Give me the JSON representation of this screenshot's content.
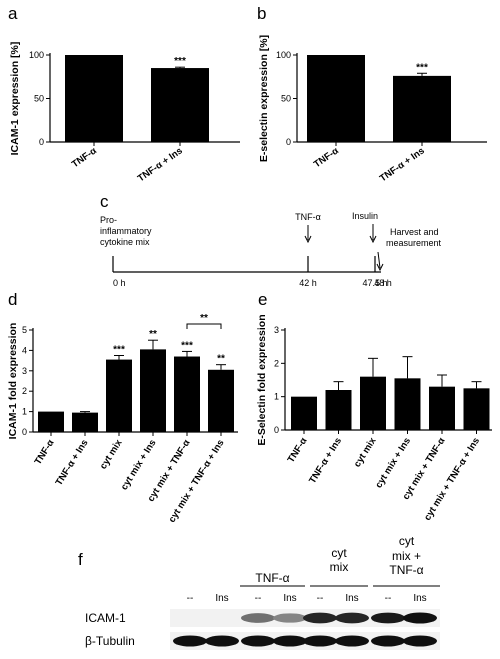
{
  "panels": {
    "a": "a",
    "b": "b",
    "c": "c",
    "d": "d",
    "e": "e",
    "f": "f"
  },
  "chart_data": [
    {
      "id": "a",
      "type": "bar",
      "ylabel": "ICAM-1 expression [%]",
      "categories": [
        "TNF-α",
        "TNF-α + Ins"
      ],
      "values": [
        100,
        85
      ],
      "errors": [
        0,
        1
      ],
      "significance": [
        "",
        "***"
      ],
      "ylim": [
        0,
        100
      ],
      "yticks": [
        "0",
        "50",
        "100"
      ],
      "yticks_values": [
        0,
        50,
        100
      ]
    },
    {
      "id": "b",
      "type": "bar",
      "ylabel": "E-selectin expression [%]",
      "categories": [
        "TNF-α",
        "TNF-α + Ins"
      ],
      "values": [
        100,
        76
      ],
      "errors": [
        0,
        3
      ],
      "significance": [
        "",
        "***"
      ],
      "ylim": [
        0,
        100
      ],
      "yticks": [
        "0",
        "50",
        "100"
      ],
      "yticks_values": [
        0,
        50,
        100
      ]
    },
    {
      "id": "d",
      "type": "bar",
      "ylabel": "ICAM-1 fold expression",
      "categories": [
        "TNF-α",
        "TNF-α + Ins",
        "cyt mix",
        "cyt mix + Ins",
        "cyt mix + TNF-α",
        "cyt mix + TNF-α + Ins"
      ],
      "values": [
        1.0,
        0.95,
        3.55,
        4.05,
        3.7,
        3.05
      ],
      "errors": [
        0,
        0.05,
        0.2,
        0.45,
        0.25,
        0.25
      ],
      "significance": [
        "",
        "",
        "***",
        "**",
        "***",
        "**"
      ],
      "bracket": {
        "from": 4,
        "to": 5,
        "label": "**"
      },
      "ylim": [
        0,
        5
      ],
      "yticks": [
        "0",
        "1",
        "2",
        "3",
        "4",
        "5"
      ],
      "yticks_values": [
        0,
        1,
        2,
        3,
        4,
        5
      ]
    },
    {
      "id": "e",
      "type": "bar",
      "ylabel": "E-Selectin fold expression",
      "categories": [
        "TNF-α",
        "TNF-α + Ins",
        "cyt mix",
        "cyt mix + Ins",
        "cyt mix + TNF-α",
        "cyt mix + TNF-α + Ins"
      ],
      "values": [
        1.0,
        1.2,
        1.6,
        1.55,
        1.3,
        1.25
      ],
      "errors": [
        0,
        0.25,
        0.55,
        0.65,
        0.35,
        0.2
      ],
      "significance": [
        "",
        "",
        "",
        "",
        "",
        ""
      ],
      "ylim": [
        0,
        3
      ],
      "yticks": [
        "0",
        "1",
        "2",
        "3"
      ],
      "yticks_values": [
        0,
        1,
        2,
        3
      ]
    }
  ],
  "timeline": {
    "events": [
      {
        "time": "0 h",
        "label": [
          "Pro-",
          "inflammatory",
          "cytokine mix"
        ]
      },
      {
        "time": "42 h",
        "label": [
          "TNF-α"
        ]
      },
      {
        "time": "47.5 h",
        "label": [
          "Insulin"
        ]
      },
      {
        "time": "48 h",
        "label": [
          "Harvest and",
          "measurement"
        ]
      }
    ]
  },
  "blot": {
    "groups": [
      {
        "label": [
          "TNF-α"
        ]
      },
      {
        "label": [
          "cyt",
          "mix"
        ]
      },
      {
        "label": [
          "cyt",
          "mix +",
          "TNF-α"
        ]
      }
    ],
    "lanes": [
      "--",
      "Ins",
      "--",
      "Ins",
      "--",
      "Ins",
      "--",
      "Ins"
    ],
    "rows": [
      {
        "label": "ICAM-1",
        "intensity": [
          0,
          0,
          0.55,
          0.45,
          0.9,
          0.9,
          0.95,
          1.0
        ]
      },
      {
        "label": "β-Tubulin",
        "intensity": [
          1,
          1,
          1,
          1,
          1,
          1,
          1,
          1
        ]
      }
    ]
  }
}
